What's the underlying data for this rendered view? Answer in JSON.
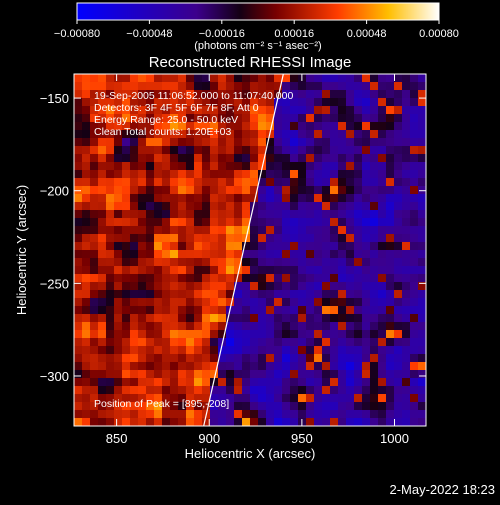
{
  "chart_data": {
    "type": "heatmap",
    "title": "Reconstructed RHESSI Image",
    "xlabel": "Heliocentric X (arcsec)",
    "ylabel": "Heliocentric Y (arcsec)",
    "xlim": [
      827,
      1017
    ],
    "ylim": [
      -327,
      -137
    ],
    "x_ticks": [
      850,
      900,
      950,
      1000
    ],
    "x_tick_labels": [
      "850",
      "900",
      "950",
      "1000"
    ],
    "y_ticks": [
      -150,
      -200,
      -250,
      -300
    ],
    "y_tick_labels": [
      "−150",
      "−200",
      "−250",
      "−300"
    ],
    "colorbar": {
      "range": [
        -0.0008,
        0.0008
      ],
      "ticks": [
        -0.0008,
        -0.00048,
        -0.00016,
        0.00016,
        0.00048,
        0.0008
      ],
      "tick_labels": [
        "−0.00080",
        "−0.00048",
        "−0.00016",
        "0.00016",
        "0.00048",
        "0.00080"
      ],
      "unit_label": "(photons cm⁻² s⁻¹ asec⁻²)"
    },
    "annotations": [
      "19-Sep-2005 11:06:52.000 to 11:07:40.000",
      "Detectors: 3F 4F 5F 6F 7F 8F, Att 0",
      "Energy Range: 25.0 - 50.0 keV",
      "Clean     Total counts: 1.20E+03"
    ],
    "peak_label": "Position of Peak = [895,-208]",
    "limb_line": {
      "from": [
        897,
        -327
      ],
      "to": [
        940,
        -137
      ]
    },
    "timestamp": "2-May-2022 18:23"
  }
}
